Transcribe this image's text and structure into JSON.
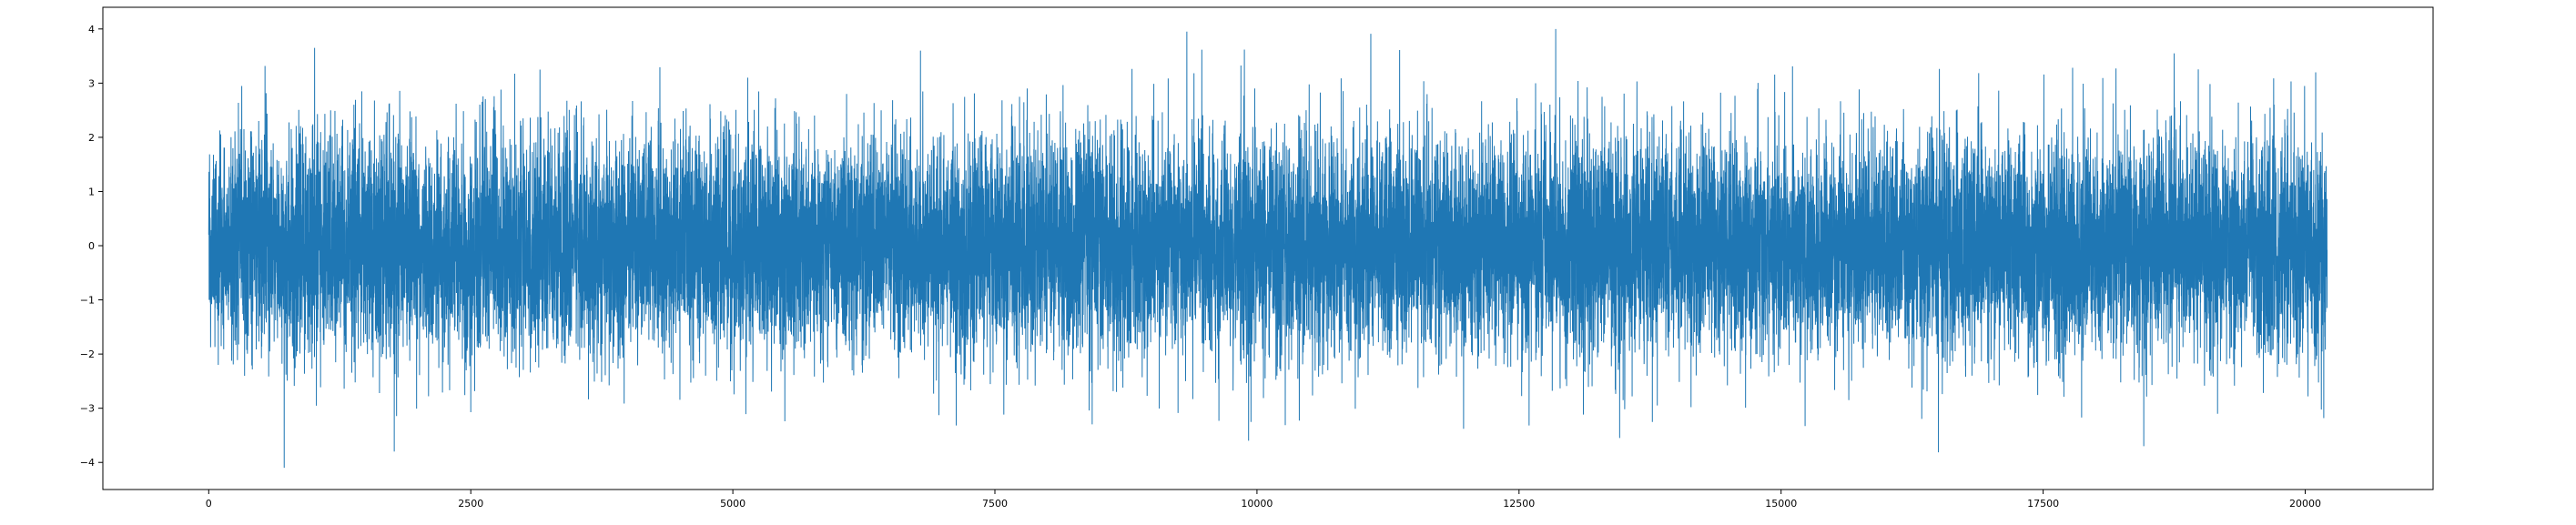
{
  "chart_data": {
    "type": "line",
    "title": "",
    "xlabel": "",
    "ylabel": "",
    "xlim": [
      -1010,
      21220
    ],
    "ylim": [
      -4.5,
      4.4
    ],
    "grid": false,
    "legend": "none",
    "x_ticks": [
      0,
      2500,
      5000,
      7500,
      10000,
      12500,
      15000,
      17500,
      20000
    ],
    "x_tick_labels": [
      "0",
      "2500",
      "5000",
      "7500",
      "10000",
      "12500",
      "15000",
      "17500",
      "20000"
    ],
    "y_ticks": [
      -4,
      -3,
      -2,
      -1,
      0,
      1,
      2,
      3,
      4
    ],
    "y_tick_labels": [
      "−4",
      "−3",
      "−2",
      "−1",
      "0",
      "1",
      "2",
      "3",
      "4"
    ],
    "series": [
      {
        "color": "#1f77b4",
        "description": "white-noise series, roughly standard normal",
        "n_points": 20210,
        "x_start": 0,
        "x_end": 20209,
        "mean": 0.0,
        "std": 1.0,
        "min": -4.1,
        "max": 4.0,
        "extremes": [
          {
            "x": 720,
            "y": -4.1
          },
          {
            "x": 1010,
            "y": 3.65
          },
          {
            "x": 1770,
            "y": -3.8
          },
          {
            "x": 3160,
            "y": 3.25
          },
          {
            "x": 6790,
            "y": 3.6
          },
          {
            "x": 9880,
            "y": 3.62
          },
          {
            "x": 9920,
            "y": -3.6
          },
          {
            "x": 12850,
            "y": 4.0
          },
          {
            "x": 13460,
            "y": -3.55
          },
          {
            "x": 18460,
            "y": -3.7
          },
          {
            "x": 18750,
            "y": 3.55
          },
          {
            "x": 20100,
            "y": 3.2
          }
        ]
      }
    ]
  }
}
